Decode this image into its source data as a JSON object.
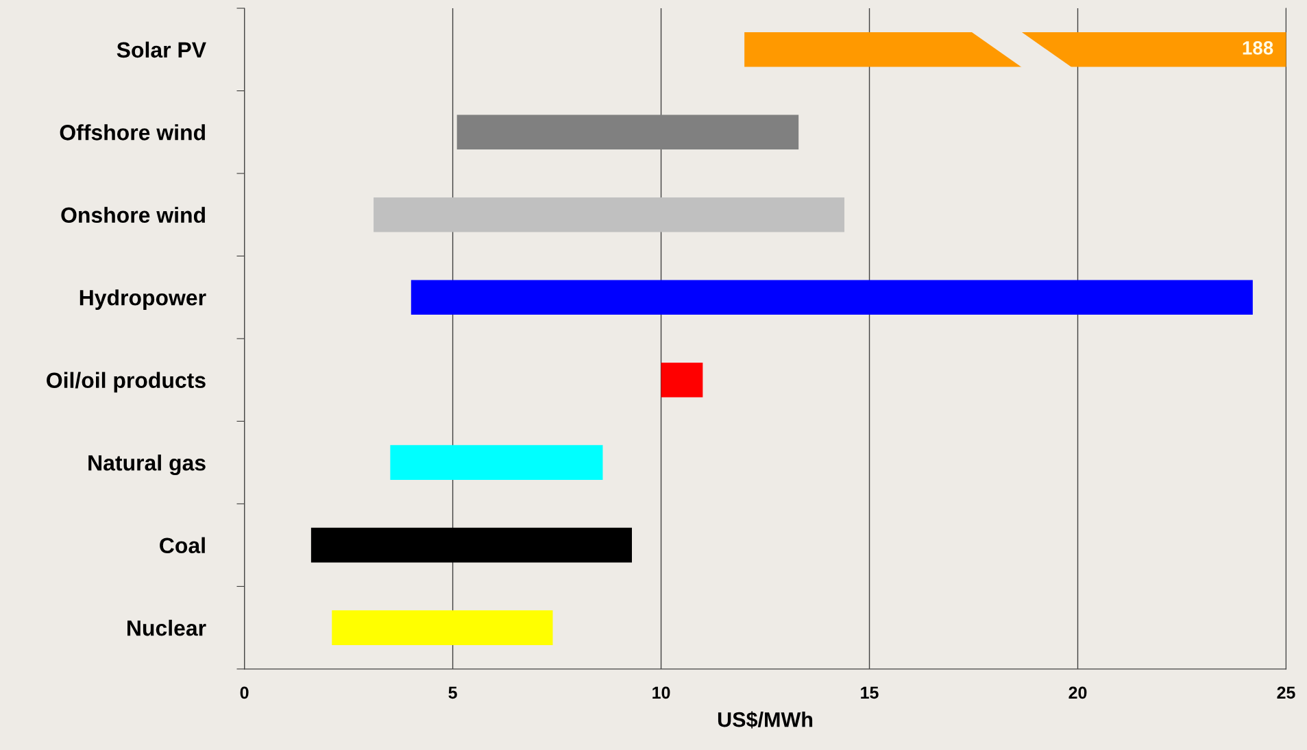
{
  "chart_data": {
    "type": "bar",
    "orientation": "horizontal",
    "categories": [
      "Solar PV",
      "Offshore wind",
      "Onshore wind",
      "Hydropower",
      "Oil/oil products",
      "Natural gas",
      "Coal",
      "Nuclear"
    ],
    "base": [
      12.0,
      5.1,
      3.1,
      4.0,
      10.0,
      3.5,
      1.6,
      2.1
    ],
    "values": [
      176,
      8.2,
      11.3,
      20.2,
      1.0,
      5.1,
      7.7,
      5.3
    ],
    "colors": [
      "#ff9900",
      "#808080",
      "#c0c0c0",
      "#0000ff",
      "#ff0000",
      "#00ffff",
      "#000000",
      "#ffff00"
    ],
    "value_labels": [
      "188",
      null,
      null,
      null,
      null,
      null,
      null,
      null
    ],
    "xlim": [
      0,
      25
    ],
    "xticks": [
      0,
      5,
      10,
      15,
      20,
      25
    ],
    "xlabel": "US$/MWh",
    "grid": "x"
  }
}
